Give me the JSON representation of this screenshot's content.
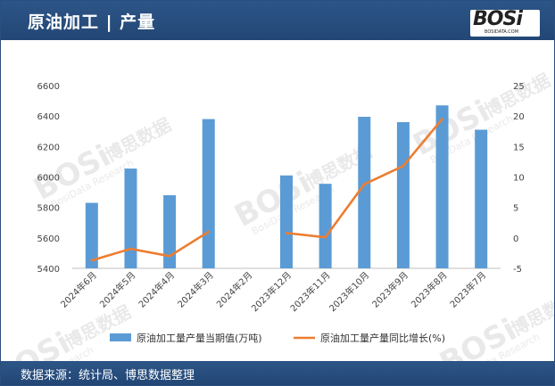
{
  "header": {
    "title": "原油加工 | 产量"
  },
  "logo": {
    "text": "BOSi",
    "sub": "BOSIDATA.COM"
  },
  "footer": {
    "source": "数据来源：统计局、博思数据整理"
  },
  "watermark": {
    "brand": "BOSi",
    "cn": "博思数据",
    "en": "BosiData Research"
  },
  "colors": {
    "header": "#2c5587",
    "bar": "#5b9bd5",
    "line": "#ed7d31"
  },
  "chart_data": {
    "type": "bar",
    "categories": [
      "2024年6月",
      "2024年5月",
      "2024年4月",
      "2024年3月",
      "2024年2月",
      "2023年12月",
      "2023年11月",
      "2023年10月",
      "2023年9月",
      "2023年8月",
      "2023年7月"
    ],
    "series": [
      {
        "name": "原油加工量产量当期值(万吨)",
        "type": "bar",
        "axis": "left",
        "values": [
          5830,
          6055,
          5880,
          6380,
          null,
          6010,
          5955,
          6395,
          6360,
          6470,
          6310
        ]
      },
      {
        "name": "原油加工量产量同比增长(%)",
        "type": "line",
        "axis": "right",
        "values": [
          -3.7,
          -1.8,
          -3.0,
          1.0,
          null,
          0.8,
          0.1,
          8.8,
          11.8,
          19.5,
          null
        ]
      }
    ],
    "y_left": {
      "min": 5400,
      "max": 6600,
      "ticks": [
        5400,
        5600,
        5800,
        6000,
        6200,
        6400,
        6600
      ]
    },
    "y_right": {
      "min": -5,
      "max": 25,
      "ticks": [
        -5,
        0,
        5,
        10,
        15,
        20,
        25
      ]
    },
    "grid": false,
    "legend": "bottom"
  }
}
